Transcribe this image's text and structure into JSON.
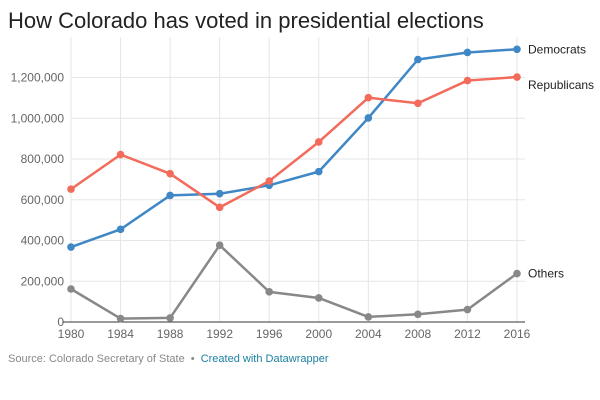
{
  "chart_data": {
    "type": "line",
    "title": "How Colorado has voted in presidential elections",
    "x": [
      1980,
      1984,
      1988,
      1992,
      1996,
      2000,
      2004,
      2008,
      2012,
      2016
    ],
    "series": [
      {
        "name": "Democrats",
        "color": "#3f88c5",
        "values": [
          367973,
          454975,
          621453,
          629681,
          671152,
          738227,
          1001732,
          1288633,
          1323102,
          1338870
        ]
      },
      {
        "name": "Republicans",
        "color": "#f26b5b",
        "values": [
          652264,
          821818,
          728177,
          562850,
          691848,
          883748,
          1101255,
          1073629,
          1185243,
          1202484
        ]
      },
      {
        "name": "Others",
        "color": "#888888",
        "values": [
          162000,
          17000,
          20000,
          377000,
          148000,
          118000,
          25000,
          38000,
          61000,
          238000
        ]
      }
    ],
    "yticks": [
      0,
      200000,
      400000,
      600000,
      800000,
      1000000,
      1200000
    ],
    "ytick_labels": [
      "0",
      "200,000",
      "400,000",
      "600,000",
      "800,000",
      "1,000,000",
      "1,200,000"
    ],
    "xtick_labels": [
      "1980",
      "1984",
      "1988",
      "1992",
      "1996",
      "2000",
      "2004",
      "2008",
      "2012",
      "2016"
    ],
    "ylim": [
      0,
      1350000
    ],
    "grid": true,
    "legend": "labels at line ends"
  },
  "footer": {
    "source": "Source: Colorado Secretary of State",
    "separator": "•",
    "credit": "Created with Datawrapper"
  }
}
